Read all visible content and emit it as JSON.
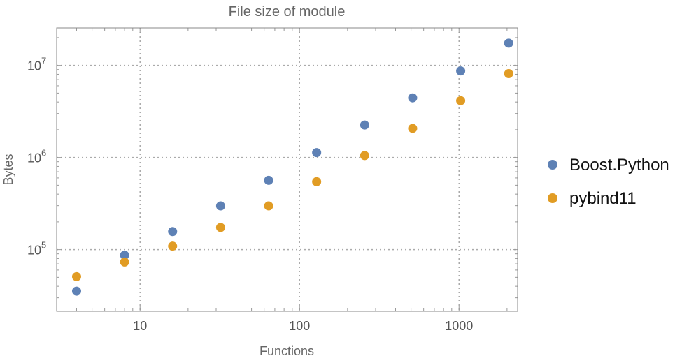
{
  "chart_data": {
    "type": "scatter",
    "title": "File size of module",
    "xlabel": "Functions",
    "ylabel": "Bytes",
    "xscale": "log",
    "yscale": "log",
    "xlim": [
      3,
      2330
    ],
    "ylim": [
      21400,
      25500000
    ],
    "grid": true,
    "legend_position": "right",
    "x_ticks": [
      {
        "value": 10,
        "label": "10"
      },
      {
        "value": 100,
        "label": "100"
      },
      {
        "value": 1000,
        "label": "1000"
      }
    ],
    "y_ticks": [
      {
        "value": 100000,
        "base": "10",
        "exp": "5"
      },
      {
        "value": 1000000,
        "base": "10",
        "exp": "6"
      },
      {
        "value": 10000000,
        "base": "10",
        "exp": "7"
      }
    ],
    "x": [
      4,
      8,
      16,
      32,
      64,
      128,
      256,
      512,
      1024,
      2048
    ],
    "series": [
      {
        "name": "Boost.Python",
        "color": "#5e81b5",
        "values": [
          35400,
          87000,
          157000,
          298000,
          565000,
          1130000,
          2250000,
          4440000,
          8700000,
          17400000
        ]
      },
      {
        "name": "pybind11",
        "color": "#e19c24",
        "values": [
          50900,
          73300,
          109000,
          174000,
          298000,
          546000,
          1050000,
          2070000,
          4140000,
          8130000
        ]
      }
    ]
  }
}
